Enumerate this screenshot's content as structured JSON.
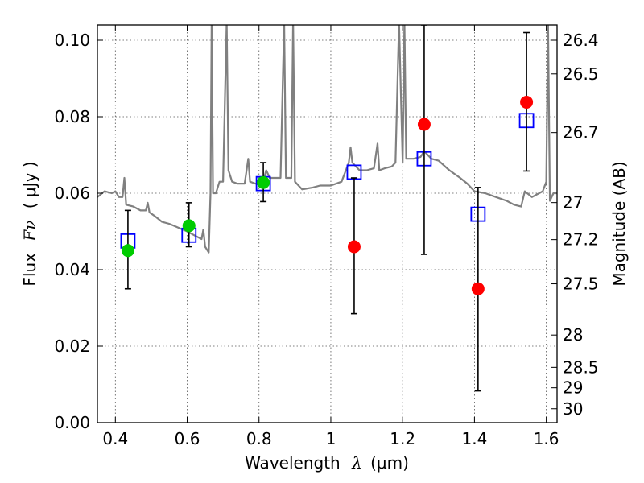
{
  "chart_data": {
    "type": "scatter",
    "xlabel": "Wavelength",
    "xlabel_symbol": "λ",
    "xlabel_unit": "(μm)",
    "ylabel": "Flux",
    "ylabel_symbol": "Fν",
    "ylabel_unit": "( μJy )",
    "right_ylabel": "Magnitude (AB)",
    "xlim": [
      0.35,
      1.63
    ],
    "ylim": [
      0.0,
      0.104
    ],
    "grid": true,
    "x_ticks": [
      {
        "value": 0.4,
        "label": "0.4"
      },
      {
        "value": 0.6,
        "label": "0.6"
      },
      {
        "value": 0.8,
        "label": "0.8"
      },
      {
        "value": 1.0,
        "label": "1"
      },
      {
        "value": 1.2,
        "label": "1.2"
      },
      {
        "value": 1.4,
        "label": "1.4"
      },
      {
        "value": 1.6,
        "label": "1.6"
      }
    ],
    "y_ticks": [
      {
        "value": 0.0,
        "label": "0.00"
      },
      {
        "value": 0.02,
        "label": "0.02"
      },
      {
        "value": 0.04,
        "label": "0.04"
      },
      {
        "value": 0.06,
        "label": "0.06"
      },
      {
        "value": 0.08,
        "label": "0.08"
      },
      {
        "value": 0.1,
        "label": "0.10"
      }
    ],
    "right_ticks": [
      {
        "value": 26.4,
        "label": "26.4"
      },
      {
        "value": 26.5,
        "label": "26.5"
      },
      {
        "value": 26.7,
        "label": "26.7"
      },
      {
        "value": 27.0,
        "label": "27"
      },
      {
        "value": 27.2,
        "label": "27.2"
      },
      {
        "value": 27.5,
        "label": "27.5"
      },
      {
        "value": 28.0,
        "label": "28"
      },
      {
        "value": 28.5,
        "label": "28.5"
      },
      {
        "value": 29.0,
        "label": "29"
      },
      {
        "value": 30.0,
        "label": "30"
      }
    ],
    "colors": {
      "template": "#808080",
      "model_box": "#0000ff",
      "optical": "#00cc00",
      "infrared": "#ff0000",
      "errorbar": "#000000",
      "grid": "#555555"
    },
    "template_spectrum": [
      [
        0.35,
        0.059
      ],
      [
        0.37,
        0.0605
      ],
      [
        0.39,
        0.06
      ],
      [
        0.4,
        0.0605
      ],
      [
        0.41,
        0.059
      ],
      [
        0.42,
        0.059
      ],
      [
        0.425,
        0.064
      ],
      [
        0.43,
        0.057
      ],
      [
        0.45,
        0.0565
      ],
      [
        0.47,
        0.0555
      ],
      [
        0.485,
        0.0555
      ],
      [
        0.49,
        0.0575
      ],
      [
        0.495,
        0.055
      ],
      [
        0.51,
        0.054
      ],
      [
        0.53,
        0.0525
      ],
      [
        0.55,
        0.052
      ],
      [
        0.575,
        0.051
      ],
      [
        0.6,
        0.05
      ],
      [
        0.62,
        0.049
      ],
      [
        0.64,
        0.048
      ],
      [
        0.645,
        0.0505
      ],
      [
        0.65,
        0.046
      ],
      [
        0.66,
        0.0445
      ],
      [
        0.665,
        0.06
      ],
      [
        0.668,
        0.105
      ],
      [
        0.672,
        0.06
      ],
      [
        0.68,
        0.06
      ],
      [
        0.69,
        0.063
      ],
      [
        0.7,
        0.063
      ],
      [
        0.71,
        0.105
      ],
      [
        0.715,
        0.066
      ],
      [
        0.725,
        0.063
      ],
      [
        0.74,
        0.0625
      ],
      [
        0.76,
        0.0625
      ],
      [
        0.77,
        0.069
      ],
      [
        0.775,
        0.063
      ],
      [
        0.79,
        0.0625
      ],
      [
        0.8,
        0.0625
      ],
      [
        0.81,
        0.0625
      ],
      [
        0.82,
        0.066
      ],
      [
        0.83,
        0.064
      ],
      [
        0.86,
        0.064
      ],
      [
        0.87,
        0.105
      ],
      [
        0.875,
        0.064
      ],
      [
        0.89,
        0.064
      ],
      [
        0.895,
        0.105
      ],
      [
        0.9,
        0.063
      ],
      [
        0.92,
        0.061
      ],
      [
        0.95,
        0.0615
      ],
      [
        0.97,
        0.062
      ],
      [
        1.0,
        0.062
      ],
      [
        1.03,
        0.063
      ],
      [
        1.05,
        0.068
      ],
      [
        1.055,
        0.072
      ],
      [
        1.06,
        0.068
      ],
      [
        1.08,
        0.066
      ],
      [
        1.1,
        0.066
      ],
      [
        1.12,
        0.0665
      ],
      [
        1.13,
        0.073
      ],
      [
        1.135,
        0.066
      ],
      [
        1.15,
        0.0665
      ],
      [
        1.17,
        0.067
      ],
      [
        1.18,
        0.068
      ],
      [
        1.19,
        0.105
      ],
      [
        1.2,
        0.068
      ],
      [
        1.205,
        0.105
      ],
      [
        1.21,
        0.069
      ],
      [
        1.23,
        0.069
      ],
      [
        1.25,
        0.0695
      ],
      [
        1.26,
        0.071
      ],
      [
        1.28,
        0.069
      ],
      [
        1.3,
        0.0685
      ],
      [
        1.33,
        0.066
      ],
      [
        1.36,
        0.064
      ],
      [
        1.38,
        0.0625
      ],
      [
        1.4,
        0.0605
      ],
      [
        1.43,
        0.06
      ],
      [
        1.46,
        0.059
      ],
      [
        1.49,
        0.058
      ],
      [
        1.51,
        0.057
      ],
      [
        1.53,
        0.0565
      ],
      [
        1.54,
        0.0605
      ],
      [
        1.56,
        0.059
      ],
      [
        1.59,
        0.0605
      ],
      [
        1.6,
        0.063
      ],
      [
        1.605,
        0.105
      ],
      [
        1.61,
        0.058
      ],
      [
        1.62,
        0.06
      ],
      [
        1.63,
        0.06
      ]
    ],
    "model_points": [
      {
        "x": 0.435,
        "y": 0.0475
      },
      {
        "x": 0.605,
        "y": 0.049
      },
      {
        "x": 0.812,
        "y": 0.0625
      },
      {
        "x": 1.065,
        "y": 0.0655
      },
      {
        "x": 1.26,
        "y": 0.069
      },
      {
        "x": 1.41,
        "y": 0.0545
      },
      {
        "x": 1.545,
        "y": 0.079
      }
    ],
    "observed_optical": [
      {
        "x": 0.435,
        "y": 0.045,
        "yerr_low": 0.035,
        "yerr_high": 0.0555
      },
      {
        "x": 0.605,
        "y": 0.0515,
        "yerr_low": 0.046,
        "yerr_high": 0.0575
      },
      {
        "x": 0.812,
        "y": 0.0628,
        "yerr_low": 0.0578,
        "yerr_high": 0.068
      }
    ],
    "observed_infrared": [
      {
        "x": 1.065,
        "y": 0.046,
        "yerr_low": 0.0285,
        "yerr_high": 0.064
      },
      {
        "x": 1.26,
        "y": 0.078,
        "yerr_low": 0.044,
        "yerr_high": 0.104
      },
      {
        "x": 1.41,
        "y": 0.035,
        "yerr_low": 0.0083,
        "yerr_high": 0.0615
      },
      {
        "x": 1.545,
        "y": 0.0838,
        "yerr_low": 0.0658,
        "yerr_high": 0.102
      }
    ]
  }
}
